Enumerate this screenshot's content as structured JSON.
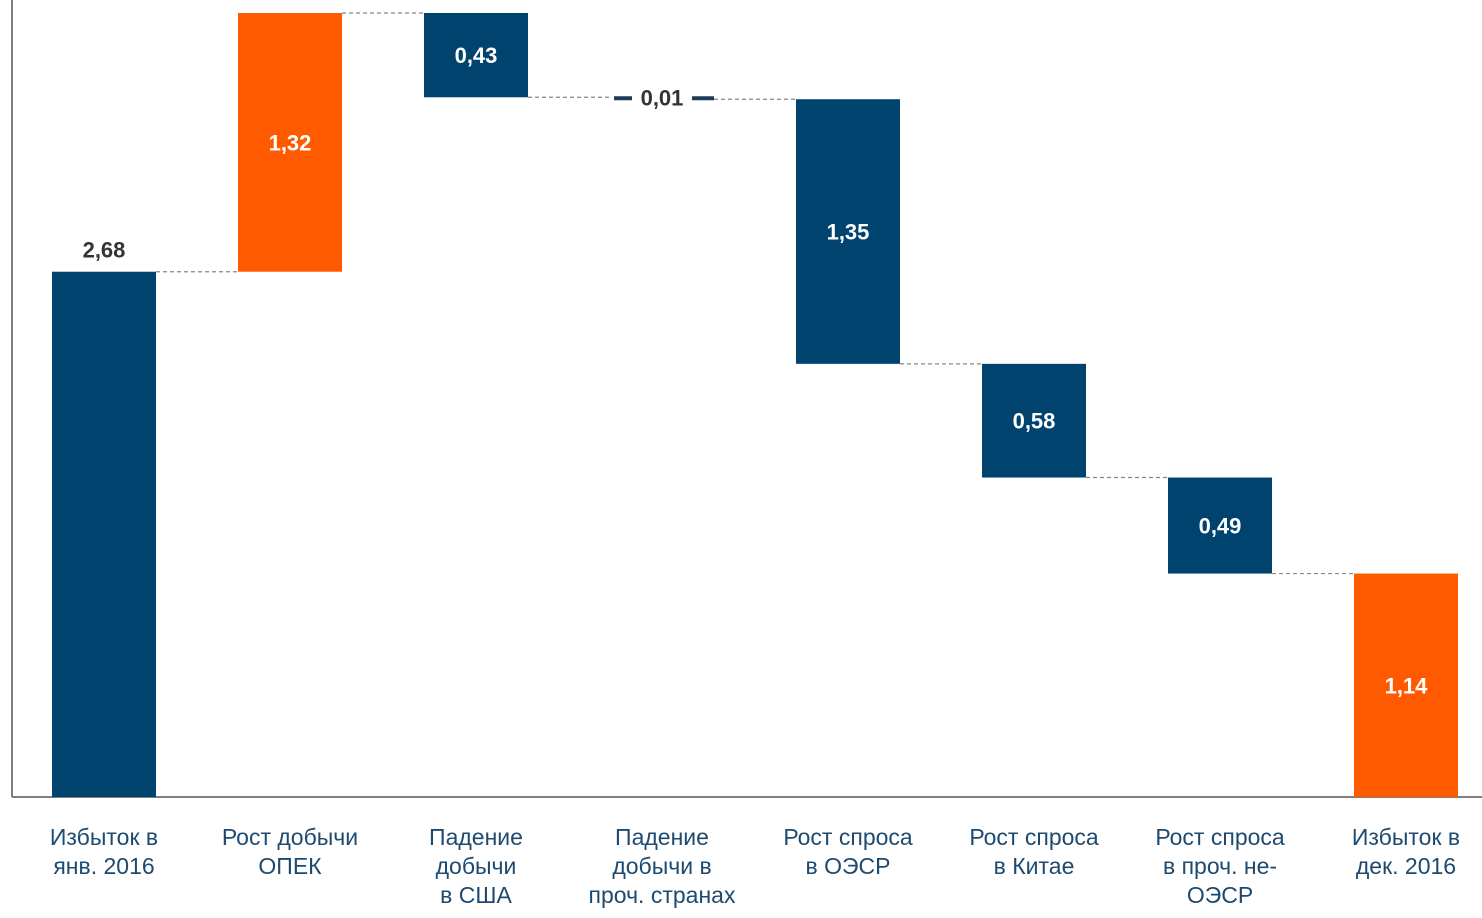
{
  "chart_data": {
    "type": "waterfall",
    "title": "",
    "xlabel": "",
    "ylabel": "",
    "ylim": [
      0,
      4.0
    ],
    "categories": [
      [
        "Избыток в",
        "янв. 2016"
      ],
      [
        "Рост добычи",
        "ОПЕК"
      ],
      [
        "Падение",
        "добычи",
        "в США"
      ],
      [
        "Падение",
        "добычи в",
        "проч. странах"
      ],
      [
        "Рост спроса",
        "в ОЭСР"
      ],
      [
        "Рост спроса",
        "в Китае"
      ],
      [
        "Рост спроса",
        "в проч. не-",
        "ОЭСР"
      ],
      [
        "Избыток в",
        "дек. 2016"
      ]
    ],
    "bars": [
      {
        "kind": "total",
        "value": 2.68,
        "label": "2,68",
        "base": 0,
        "color": "#00436e"
      },
      {
        "kind": "increase",
        "value": 1.32,
        "label": "1,32",
        "base": 2.68,
        "color": "#ff5a00"
      },
      {
        "kind": "decrease",
        "value": 0.43,
        "label": "0,43",
        "base": 3.57,
        "color": "#00436e"
      },
      {
        "kind": "decrease",
        "value": 0.01,
        "label": "0,01",
        "base": 3.56,
        "color": "#00436e"
      },
      {
        "kind": "decrease",
        "value": 1.35,
        "label": "1,35",
        "base": 2.21,
        "color": "#00436e"
      },
      {
        "kind": "decrease",
        "value": 0.58,
        "label": "0,58",
        "base": 1.63,
        "color": "#00436e"
      },
      {
        "kind": "decrease",
        "value": 0.49,
        "label": "0,49",
        "base": 1.14,
        "color": "#00436e"
      },
      {
        "kind": "total",
        "value": 1.14,
        "label": "1,14",
        "base": 0,
        "color": "#ff5a00"
      }
    ],
    "connectors": true,
    "grid": false
  }
}
